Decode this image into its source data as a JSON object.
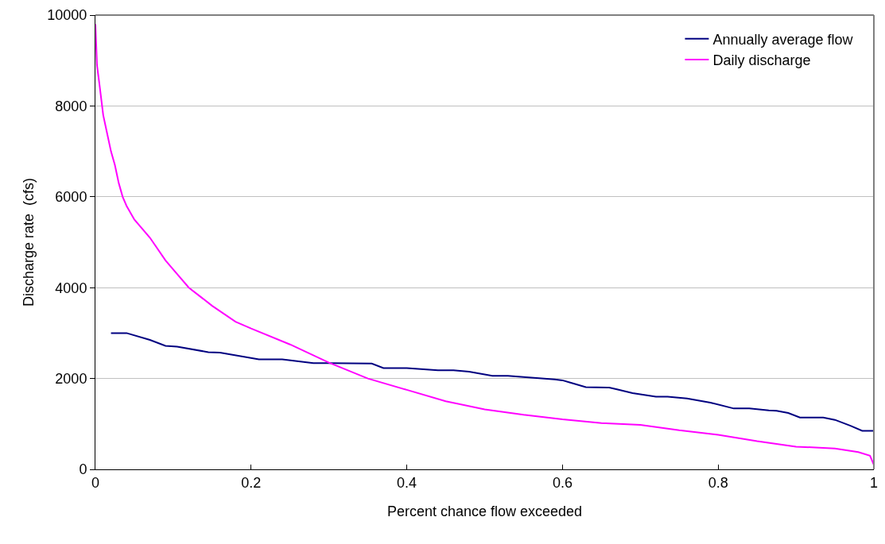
{
  "chart_data": {
    "type": "line",
    "xlabel": "Percent chance flow exceeded",
    "ylabel": "Discharge rate  (cfs)",
    "xlim": [
      0,
      1
    ],
    "xticks": [
      0,
      0.2,
      0.4,
      0.6,
      0.8,
      1
    ],
    "ylim": [
      0,
      10000
    ],
    "yticks": [
      0,
      2000,
      4000,
      6000,
      8000,
      10000
    ],
    "grid": "y",
    "legend": "top right",
    "marker": "none",
    "line_style": "solid",
    "series": [
      {
        "name": "Annually average flow",
        "color": "#000080",
        "x": [
          0.02,
          0.04,
          0.07,
          0.09,
          0.105,
          0.145,
          0.16,
          0.21,
          0.24,
          0.28,
          0.3,
          0.355,
          0.37,
          0.4,
          0.44,
          0.46,
          0.48,
          0.51,
          0.53,
          0.59,
          0.6,
          0.61,
          0.63,
          0.66,
          0.67,
          0.69,
          0.72,
          0.735,
          0.76,
          0.79,
          0.82,
          0.84,
          0.865,
          0.875,
          0.89,
          0.905,
          0.935,
          0.95,
          0.97,
          0.985,
          1.0
        ],
        "values": [
          3000,
          3000,
          2850,
          2720,
          2700,
          2580,
          2570,
          2420,
          2420,
          2340,
          2340,
          2330,
          2230,
          2230,
          2180,
          2180,
          2150,
          2060,
          2060,
          1980,
          1960,
          1910,
          1810,
          1800,
          1760,
          1680,
          1600,
          1600,
          1560,
          1470,
          1340,
          1340,
          1300,
          1290,
          1240,
          1140,
          1140,
          1090,
          960,
          850,
          850
        ]
      },
      {
        "name": "Daily discharge",
        "color": "#ff00ff",
        "x": [
          0,
          0.002,
          0.005,
          0.01,
          0.015,
          0.02,
          0.025,
          0.03,
          0.035,
          0.04,
          0.05,
          0.07,
          0.09,
          0.1,
          0.12,
          0.15,
          0.18,
          0.2,
          0.25,
          0.3,
          0.35,
          0.4,
          0.45,
          0.5,
          0.55,
          0.6,
          0.65,
          0.7,
          0.75,
          0.8,
          0.85,
          0.9,
          0.95,
          0.98,
          0.995,
          1.0
        ],
        "values": [
          9800,
          8900,
          8500,
          7800,
          7400,
          7000,
          6700,
          6300,
          6000,
          5800,
          5500,
          5100,
          4600,
          4400,
          4000,
          3600,
          3250,
          3100,
          2750,
          2350,
          2000,
          1750,
          1500,
          1320,
          1200,
          1100,
          1020,
          980,
          860,
          760,
          620,
          500,
          460,
          380,
          300,
          100
        ]
      }
    ]
  }
}
